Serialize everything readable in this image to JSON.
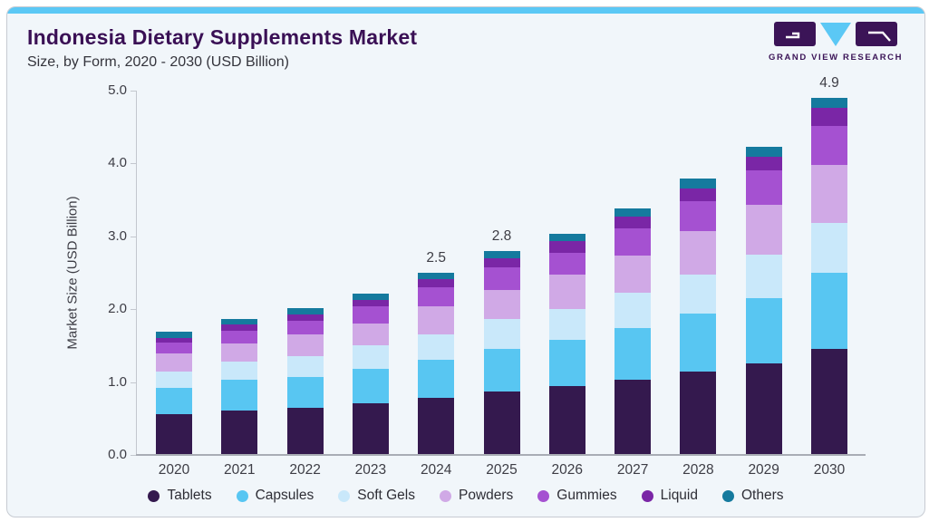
{
  "page": {
    "outer_bg": "#ffffff",
    "card_bg": "#f1f6fa",
    "top_strip_color": "#5bc8f5"
  },
  "header": {
    "title": "Indonesia Dietary Supplements Market",
    "subtitle": "Size, by Form, 2020 - 2030 (USD Billion)",
    "title_color": "#3a1055"
  },
  "logo": {
    "text": "GRAND VIEW RESEARCH",
    "purple": "#3b1457",
    "blue": "#5bc8f5"
  },
  "chart_data": {
    "type": "bar",
    "stacked": true,
    "title": "Indonesia Dietary Supplements Market Size, by Form, 2020 - 2030 (USD Billion)",
    "categories": [
      "2020",
      "2021",
      "2022",
      "2023",
      "2024",
      "2025",
      "2026",
      "2027",
      "2028",
      "2029",
      "2030"
    ],
    "series": [
      {
        "name": "Tablets",
        "color": "#34194e",
        "values": [
          0.56,
          0.61,
          0.65,
          0.71,
          0.78,
          0.87,
          0.94,
          1.03,
          1.14,
          1.26,
          1.45
        ]
      },
      {
        "name": "Capsules",
        "color": "#58c6f2",
        "values": [
          0.36,
          0.42,
          0.42,
          0.47,
          0.53,
          0.58,
          0.64,
          0.71,
          0.8,
          0.89,
          1.05
        ]
      },
      {
        "name": "Soft Gels",
        "color": "#c9e8fa",
        "values": [
          0.23,
          0.25,
          0.28,
          0.33,
          0.35,
          0.41,
          0.42,
          0.49,
          0.53,
          0.6,
          0.68
        ]
      },
      {
        "name": "Powders",
        "color": "#d0a9e6",
        "values": [
          0.24,
          0.25,
          0.3,
          0.29,
          0.38,
          0.4,
          0.47,
          0.51,
          0.6,
          0.68,
          0.8
        ]
      },
      {
        "name": "Gummies",
        "color": "#a551d1",
        "values": [
          0.15,
          0.18,
          0.19,
          0.24,
          0.26,
          0.31,
          0.31,
          0.37,
          0.41,
          0.47,
          0.54
        ]
      },
      {
        "name": "Liquid",
        "color": "#7a26a6",
        "values": [
          0.07,
          0.08,
          0.09,
          0.09,
          0.11,
          0.13,
          0.15,
          0.16,
          0.18,
          0.19,
          0.25
        ]
      },
      {
        "name": "Others",
        "color": "#157a9e",
        "values": [
          0.08,
          0.08,
          0.08,
          0.08,
          0.09,
          0.1,
          0.1,
          0.11,
          0.13,
          0.14,
          0.13
        ]
      }
    ],
    "totals_labels": {
      "2024": "2.5",
      "2025": "2.8",
      "2030": "4.9"
    },
    "ylabel": "Market Size (USD Billion)",
    "ylim": [
      0,
      5
    ],
    "y_ticks": [
      "0.0",
      "1.0",
      "2.0",
      "3.0",
      "4.0",
      "5.0"
    ],
    "grid": false,
    "legend_position": "bottom"
  }
}
